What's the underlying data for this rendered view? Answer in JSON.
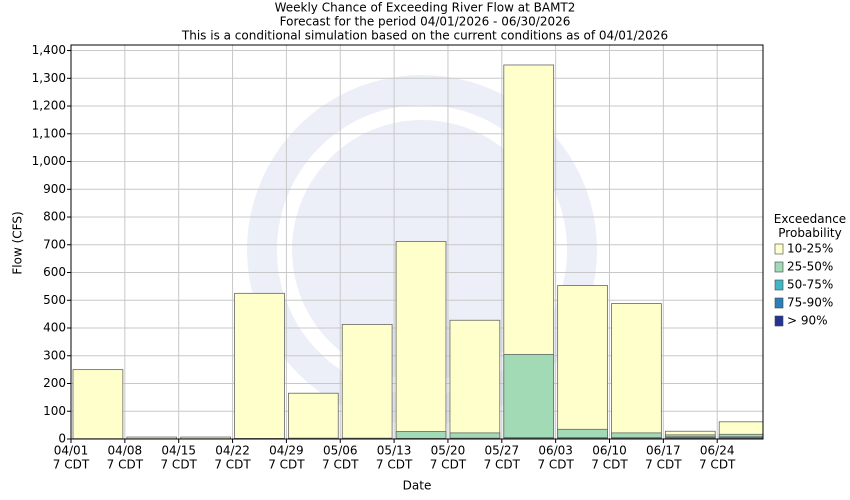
{
  "chart_data": {
    "type": "bar",
    "title": "Weekly Chance of Exceeding River Flow at BAMT2",
    "subtitle": "Forecast for the period 04/01/2026 - 06/30/2026",
    "note": "This is a conditional simulation based on the current conditions as of 04/01/2026",
    "x_label": "Date",
    "y_label": "Flow (CFS)",
    "x_tick_labels": [
      {
        "date": "04/01",
        "time": "7 CDT"
      },
      {
        "date": "04/08",
        "time": "7 CDT"
      },
      {
        "date": "04/15",
        "time": "7 CDT"
      },
      {
        "date": "04/22",
        "time": "7 CDT"
      },
      {
        "date": "04/29",
        "time": "7 CDT"
      },
      {
        "date": "05/06",
        "time": "7 CDT"
      },
      {
        "date": "05/13",
        "time": "7 CDT"
      },
      {
        "date": "05/20",
        "time": "7 CDT"
      },
      {
        "date": "05/27",
        "time": "7 CDT"
      },
      {
        "date": "06/03",
        "time": "7 CDT"
      },
      {
        "date": "06/10",
        "time": "7 CDT"
      },
      {
        "date": "06/17",
        "time": "7 CDT"
      },
      {
        "date": "06/24",
        "time": "7 CDT"
      }
    ],
    "legend_title": "Exceedance Probability",
    "series": [
      {
        "name": "10-25%",
        "color": "#ffffcc",
        "values": [
          250,
          7,
          7,
          525,
          165,
          413,
          712,
          428,
          1348,
          553,
          488,
          28,
          62
        ]
      },
      {
        "name": "25-50%",
        "color": "#a1dab4",
        "values": [
          1,
          1,
          1,
          2,
          3,
          3,
          27,
          22,
          305,
          35,
          22,
          15,
          17
        ]
      },
      {
        "name": "50-75%",
        "color": "#41b6c4",
        "values": [
          0,
          0,
          0,
          1,
          1,
          1,
          2,
          3,
          5,
          5,
          5,
          8,
          8
        ]
      },
      {
        "name": "75-90%",
        "color": "#2c7fb8",
        "values": [
          0,
          0,
          0,
          0,
          1,
          1,
          1,
          1,
          2,
          2,
          2,
          5,
          5
        ]
      },
      {
        "name": "> 90%",
        "color": "#253494",
        "values": [
          0,
          0,
          0,
          0,
          0,
          0,
          0,
          0,
          1,
          1,
          1,
          2,
          2
        ]
      }
    ],
    "ylim": [
      0,
      1420
    ],
    "yticks": [
      0,
      100,
      200,
      300,
      400,
      500,
      600,
      700,
      800,
      900,
      {
        "value": 1000,
        "label": "1,000"
      },
      {
        "value": 1100,
        "label": "1,100"
      },
      {
        "value": 1200,
        "label": "1,200"
      },
      {
        "value": 1300,
        "label": "1,300"
      },
      {
        "value": 1400,
        "label": "1,400"
      }
    ],
    "grid": true
  }
}
